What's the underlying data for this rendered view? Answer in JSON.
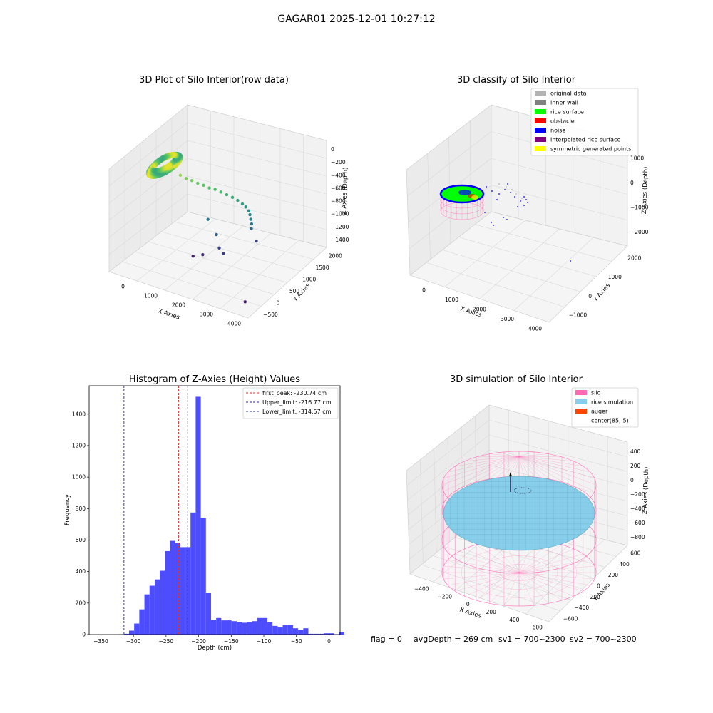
{
  "figure": {
    "title": "GAGAR01 2025-12-01 10:27:12",
    "status": {
      "flag": "flag = 0",
      "avg_depth": "avgDepth = 269 cm",
      "sv1": "sv1 = 700~2300",
      "sv2": "sv2 = 700~2300"
    }
  },
  "colors": {
    "pane": "#f2f2f2",
    "grid": "#d9d9d9",
    "hist_bar": "#4d4dff",
    "peak_line": "#e03030",
    "limit_line": "#2a2aa0",
    "silo_pink": "#ff69b4",
    "rice_sim": "#87ceeb",
    "auger": "#ff4500"
  },
  "chart_data": [
    {
      "type": "scatter",
      "projection": "3d",
      "title": "3D Plot of Silo Interior(row data)",
      "xlabel": "X Axies",
      "ylabel": "Y Axies",
      "zlabel": "Z Axies (Depth)",
      "x_ticks": [
        "0",
        "1000",
        "2000",
        "3000",
        "4000"
      ],
      "y_ticks": [
        "−500",
        "0",
        "500",
        "1000",
        "1500",
        "2000"
      ],
      "z_ticks": [
        "0",
        "−200",
        "−400",
        "−600",
        "−800",
        "−1000",
        "−1200",
        "−1400"
      ],
      "colormap": "viridis",
      "ring": {
        "cx": 230,
        "cy": 600,
        "rx": 170,
        "ry": 230,
        "z": -230
      },
      "points": [
        {
          "x": 700,
          "y": 700,
          "z": -350
        },
        {
          "x": 850,
          "y": 760,
          "z": -400
        },
        {
          "x": 1000,
          "y": 820,
          "z": -430
        },
        {
          "x": 1150,
          "y": 880,
          "z": -470
        },
        {
          "x": 1300,
          "y": 940,
          "z": -500
        },
        {
          "x": 1450,
          "y": 1000,
          "z": -540
        },
        {
          "x": 1600,
          "y": 1060,
          "z": -560
        },
        {
          "x": 1750,
          "y": 1120,
          "z": -600
        },
        {
          "x": 1900,
          "y": 1180,
          "z": -640
        },
        {
          "x": 2050,
          "y": 1240,
          "z": -680
        },
        {
          "x": 2200,
          "y": 1280,
          "z": -720
        },
        {
          "x": 2350,
          "y": 1300,
          "z": -760
        },
        {
          "x": 2450,
          "y": 1320,
          "z": -800
        },
        {
          "x": 2550,
          "y": 1330,
          "z": -850
        },
        {
          "x": 2600,
          "y": 1320,
          "z": -900
        },
        {
          "x": 2650,
          "y": 1300,
          "z": -960
        },
        {
          "x": 2700,
          "y": 1280,
          "z": -1020
        },
        {
          "x": 2720,
          "y": 1250,
          "z": -1080
        },
        {
          "x": 2800,
          "y": 1350,
          "z": -1300
        },
        {
          "x": 1500,
          "y": 900,
          "z": -1000
        },
        {
          "x": 1900,
          "y": 800,
          "z": -1150
        },
        {
          "x": 2100,
          "y": 700,
          "z": -1300
        },
        {
          "x": 2350,
          "y": 600,
          "z": -1320
        },
        {
          "x": 1700,
          "y": 500,
          "z": -1400
        },
        {
          "x": 1400,
          "y": 450,
          "z": -1450
        },
        {
          "x": 4100,
          "y": -400,
          "z": -1500
        }
      ]
    },
    {
      "type": "scatter",
      "projection": "3d",
      "title": "3D classify of Silo Interior",
      "xlabel": "X Axies",
      "ylabel": "Y Axies",
      "zlabel": "Z Axies (Depth)",
      "x_ticks": [
        "0",
        "1000",
        "2000",
        "3000",
        "4000"
      ],
      "y_ticks": [
        "−1000",
        "0",
        "1000",
        "2000"
      ],
      "z_ticks": [
        "1000",
        "0",
        "−1000",
        "−2000"
      ],
      "legend": {
        "position": "upper right",
        "entries": [
          {
            "label": "original data",
            "color": "#b3b3b3"
          },
          {
            "label": "inner wall",
            "color": "#808080"
          },
          {
            "label": "rice surface",
            "color": "#00ff00"
          },
          {
            "label": "obstacle",
            "color": "#ff0000"
          },
          {
            "label": "noise",
            "color": "#0000ff"
          },
          {
            "label": "interpolated rice surface",
            "color": "#800080"
          },
          {
            "label": "symmetric generated points",
            "color": "#ffff00"
          }
        ]
      }
    },
    {
      "type": "bar",
      "title": "Histogram of Z-Axies (Height) Values",
      "xlabel": "Depth (cm)",
      "ylabel": "Frequency",
      "xlim": [
        -368,
        17
      ],
      "ylim": [
        0,
        1580
      ],
      "x_ticks": [
        -350,
        -300,
        -250,
        -200,
        -150,
        -100,
        -50,
        0
      ],
      "y_ticks": [
        0,
        200,
        400,
        600,
        800,
        1000,
        1200,
        1400
      ],
      "bin_width": 7.86,
      "bins_start": -338.2,
      "values": [
        0,
        0,
        2,
        5,
        25,
        70,
        160,
        255,
        310,
        350,
        405,
        530,
        595,
        580,
        555,
        555,
        775,
        1510,
        740,
        265,
        95,
        105,
        90,
        90,
        85,
        80,
        75,
        80,
        85,
        105,
        105,
        80,
        55,
        45,
        60,
        60,
        40,
        30,
        40,
        5,
        5,
        5,
        8,
        8,
        2,
        15
      ],
      "vlines": [
        {
          "label": "first_peak: -230.74 cm",
          "x": -230.74,
          "color": "#e03030"
        },
        {
          "label": "Upper_limit: -216.77 cm",
          "x": -216.77,
          "color": "#2a2aa0"
        },
        {
          "label": "Lower_limit: -314.57 cm",
          "x": -314.57,
          "color": "#2a2aa0"
        }
      ],
      "legend": {
        "position": "upper right"
      }
    },
    {
      "type": "surface",
      "projection": "3d",
      "title": "3D simulation of Silo Interior",
      "xlabel": "X Axies",
      "ylabel": "Y Axies",
      "zlabel": "Z Axies (Depth)",
      "x_ticks": [
        "−400",
        "−200",
        "0",
        "200",
        "400",
        "600"
      ],
      "y_ticks": [
        "−600",
        "−400",
        "−200",
        "0",
        "200",
        "400",
        "600"
      ],
      "z_ticks": [
        "400",
        "200",
        "0",
        "−200",
        "−400",
        "−600",
        "−800"
      ],
      "legend": {
        "position": "upper right",
        "entries": [
          {
            "label": "silo",
            "color": "#ff69b4"
          },
          {
            "label": "rice simulation",
            "color": "#87ceeb"
          },
          {
            "label": "auger",
            "color": "#ff4500"
          },
          {
            "label": "center(85,-5)",
            "color": ""
          }
        ]
      }
    }
  ]
}
